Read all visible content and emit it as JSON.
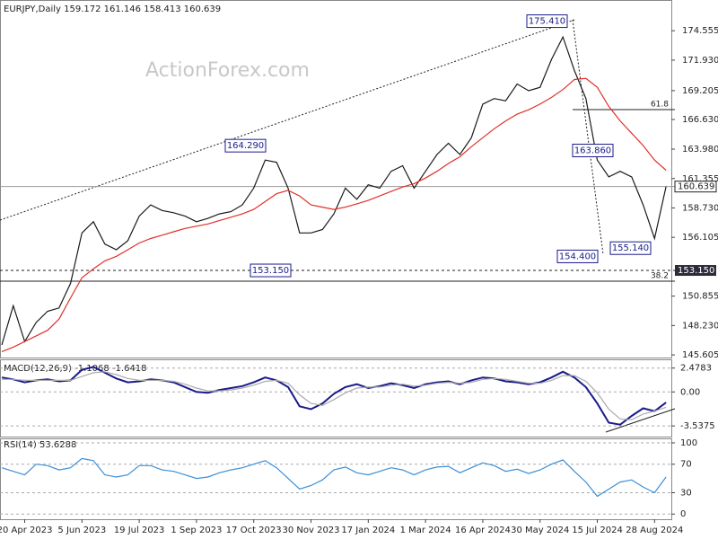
{
  "chart_data": [
    {
      "type": "line",
      "title": "EURJPY,Daily",
      "ohlc": [
        159.172,
        161.146,
        158.413,
        160.639
      ],
      "watermark": "ActionForex.com",
      "categories": [
        null,
        null,
        "20 Apr 2023",
        null,
        null,
        null,
        null,
        "5 Jun 2023",
        null,
        null,
        null,
        null,
        "19 Jul 2023",
        null,
        null,
        null,
        null,
        "1 Sep 2023",
        null,
        null,
        null,
        null,
        "17 Oct 2023",
        null,
        null,
        null,
        null,
        "30 Nov 2023",
        null,
        null,
        null,
        null,
        "17 Jan 2024",
        null,
        null,
        null,
        null,
        "1 Mar 2024",
        null,
        null,
        null,
        null,
        "16 Apr 2024",
        null,
        null,
        null,
        null,
        "30 May 2024",
        null,
        null,
        null,
        null,
        "15 Jul 2024",
        null,
        null,
        null,
        null,
        "28 Aug 2024",
        null
      ],
      "series": [
        {
          "name": "EURJPY",
          "color": "#1a1a1a",
          "values": [
            146.5,
            150,
            146.8,
            148.5,
            149.5,
            149.8,
            152,
            156.5,
            157.5,
            155.5,
            155,
            155.8,
            158,
            159,
            158.5,
            158.3,
            158,
            157.5,
            157.8,
            158.2,
            158.4,
            159,
            160.5,
            163,
            162.8,
            160.5,
            156.5,
            156.5,
            156.8,
            158.2,
            160.5,
            159.5,
            160.8,
            160.5,
            162,
            162.5,
            160.5,
            162,
            163.5,
            164.5,
            163.5,
            165,
            168,
            168.5,
            168.3,
            169.8,
            169.2,
            169.5,
            172,
            174,
            171,
            168.5,
            163,
            161.5,
            162,
            161.5,
            159,
            156,
            160.639
          ]
        },
        {
          "name": "SMA",
          "color": "#e0302a",
          "values": [
            145.9,
            146.3,
            146.8,
            147.3,
            147.8,
            148.8,
            150.7,
            152.5,
            153.3,
            154,
            154.4,
            155,
            155.6,
            156,
            156.3,
            156.6,
            156.9,
            157.1,
            157.3,
            157.6,
            157.9,
            158.2,
            158.6,
            159.3,
            160,
            160.3,
            159.8,
            159,
            158.8,
            158.6,
            158.8,
            159.1,
            159.4,
            159.8,
            160.2,
            160.6,
            160.9,
            161.4,
            162,
            162.7,
            163.3,
            164.2,
            165,
            165.8,
            166.5,
            167.1,
            167.5,
            168,
            168.6,
            169.3,
            170.2,
            170.3,
            169.5,
            167.8,
            166.5,
            165.4,
            164.3,
            163,
            162.1
          ]
        }
      ],
      "ylim": [
        145.37,
        177.3
      ],
      "yticks": [
        174.555,
        {
          "value": 171.93,
          "label": "171.930"
        },
        169.205,
        {
          "value": 166.63,
          "label": "166.630"
        },
        {
          "value": 163.98,
          "label": "163.980"
        },
        161.355,
        {
          "value": 158.73,
          "label": "158.730"
        },
        156.105,
        150.855,
        {
          "value": 148.23,
          "label": "148.230"
        },
        145.605
      ],
      "annotations": [
        {
          "value": 175.41,
          "label": "175.410"
        },
        {
          "value": 164.29,
          "label": "164.290"
        },
        {
          "value": 163.86,
          "label": "163.860"
        },
        {
          "value": 155.14,
          "label": "155.140"
        },
        {
          "value": 154.4,
          "label": "154.400"
        },
        {
          "value": 153.15,
          "label": "153.150"
        }
      ],
      "fib_levels": [
        {
          "value": 167.51,
          "label": "61.8"
        },
        {
          "value": 152.19,
          "label": "38.2"
        }
      ],
      "last_price": {
        "value": 160.639,
        "label": "160.639"
      },
      "support": {
        "value": 153.15,
        "label": "153.150"
      }
    },
    {
      "type": "line",
      "title": "MACD(12,26,9)",
      "readings": [
        -1.1068,
        -1.6418
      ],
      "series": [
        {
          "name": "MACD",
          "color": "#1a1a8c",
          "values": [
            1.5,
            1.3,
            1.0,
            1.2,
            1.3,
            1.1,
            1.2,
            2.3,
            2.6,
            2.0,
            1.4,
            1.0,
            1.1,
            1.3,
            1.2,
            1.0,
            0.5,
            0.0,
            -0.1,
            0.2,
            0.4,
            0.6,
            1.0,
            1.5,
            1.2,
            0.5,
            -1.5,
            -1.8,
            -1.2,
            -0.2,
            0.5,
            0.8,
            0.4,
            0.6,
            0.9,
            0.7,
            0.4,
            0.8,
            1.0,
            1.1,
            0.8,
            1.2,
            1.5,
            1.4,
            1.1,
            1.0,
            0.8,
            1.0,
            1.5,
            2.1,
            1.5,
            0.5,
            -1.2,
            -3.2,
            -3.4,
            -2.5,
            -1.7,
            -2.0,
            -1.1
          ]
        },
        {
          "name": "Signal",
          "color": "#aaaaaa",
          "values": [
            1.3,
            1.3,
            1.2,
            1.2,
            1.2,
            1.2,
            1.2,
            1.6,
            2.0,
            2.1,
            1.8,
            1.4,
            1.2,
            1.2,
            1.2,
            1.1,
            0.8,
            0.4,
            0.1,
            0.1,
            0.2,
            0.4,
            0.7,
            1.1,
            1.2,
            0.9,
            -0.3,
            -1.2,
            -1.4,
            -0.8,
            -0.1,
            0.4,
            0.5,
            0.5,
            0.7,
            0.8,
            0.6,
            0.7,
            0.9,
            1.0,
            0.9,
            1.0,
            1.3,
            1.4,
            1.3,
            1.1,
            0.9,
            0.9,
            1.2,
            1.7,
            1.7,
            1.1,
            -0.1,
            -1.8,
            -2.8,
            -2.9,
            -2.3,
            -2.0,
            -1.6
          ]
        }
      ],
      "ylim": [
        -4.55,
        3.2
      ],
      "yticks": [
        2.4783,
        {
          "value": 0,
          "label": "0.00"
        },
        -3.5375
      ]
    },
    {
      "type": "line",
      "title": "RSI(14)",
      "readings": [
        53.6288
      ],
      "series": [
        {
          "name": "RSI",
          "color": "#3a8fd8",
          "values": [
            65,
            60,
            55,
            70,
            68,
            62,
            65,
            78,
            75,
            55,
            52,
            55,
            68,
            68,
            62,
            60,
            55,
            50,
            52,
            58,
            62,
            65,
            70,
            75,
            65,
            50,
            35,
            40,
            48,
            62,
            66,
            58,
            55,
            60,
            65,
            62,
            55,
            62,
            66,
            67,
            58,
            65,
            72,
            68,
            60,
            63,
            57,
            62,
            70,
            76,
            60,
            45,
            25,
            35,
            45,
            48,
            38,
            30,
            52
          ]
        }
      ],
      "ylim": [
        -6,
        105
      ],
      "yticks": [
        100,
        70,
        30,
        0
      ]
    }
  ]
}
